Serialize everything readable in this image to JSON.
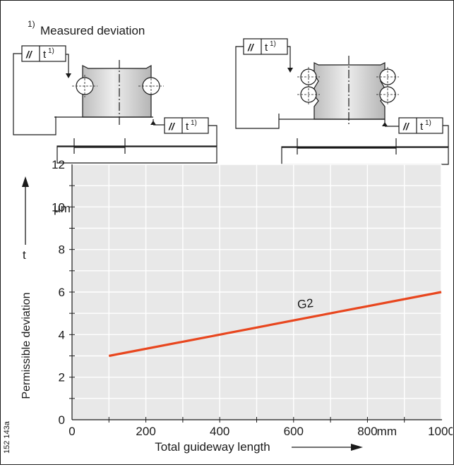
{
  "footnote": {
    "marker": "1)",
    "text": "Measured deviation"
  },
  "tolerance_box": {
    "symbol": "//",
    "value": "t",
    "sup": "1)"
  },
  "figure_id": "152 143a",
  "chart_data": {
    "type": "line",
    "title": "",
    "xlabel": "Total guideway length",
    "x_unit": "mm",
    "ylabel": "Permissible deviation",
    "y_symbol": "t",
    "y_unit": "µm",
    "xlim": [
      0,
      1000
    ],
    "ylim": [
      0,
      12
    ],
    "x_ticks": [
      "0",
      "200",
      "400",
      "600",
      "800",
      "1000"
    ],
    "y_ticks": [
      "0",
      "2",
      "4",
      "6",
      "8",
      "10",
      "12"
    ],
    "grid": true,
    "series": [
      {
        "name": "G2",
        "color": "#e8461e",
        "x": [
          100,
          1000
        ],
        "y": [
          3,
          6
        ]
      }
    ]
  }
}
